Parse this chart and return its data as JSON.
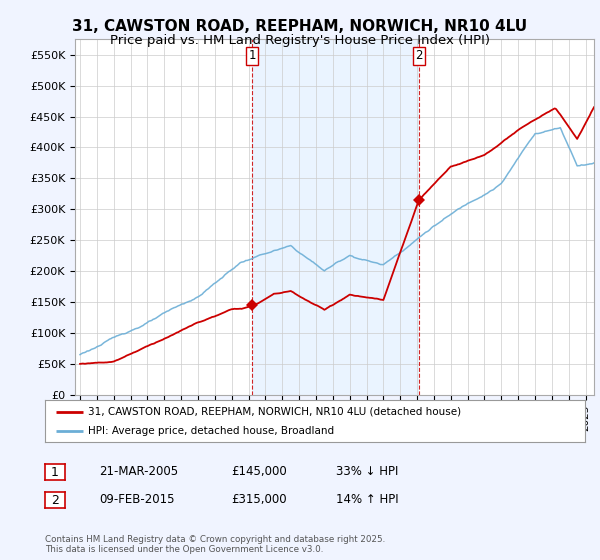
{
  "title1": "31, CAWSTON ROAD, REEPHAM, NORWICH, NR10 4LU",
  "title2": "Price paid vs. HM Land Registry's House Price Index (HPI)",
  "ylabel_ticks": [
    "£0",
    "£50K",
    "£100K",
    "£150K",
    "£200K",
    "£250K",
    "£300K",
    "£350K",
    "£400K",
    "£450K",
    "£500K",
    "£550K"
  ],
  "ytick_values": [
    0,
    50000,
    100000,
    150000,
    200000,
    250000,
    300000,
    350000,
    400000,
    450000,
    500000,
    550000
  ],
  "ylim": [
    0,
    575000
  ],
  "xlim_start": 1994.7,
  "xlim_end": 2025.5,
  "hpi_color": "#6baed6",
  "price_color": "#cc0000",
  "shade_color": "#ddeeff",
  "legend1": "31, CAWSTON ROAD, REEPHAM, NORWICH, NR10 4LU (detached house)",
  "legend2": "HPI: Average price, detached house, Broadland",
  "marker1_year": 2005.2,
  "marker1_price": 145000,
  "marker1_label": "1",
  "marker1_date": "21-MAR-2005",
  "marker1_amount": "£145,000",
  "marker1_pct": "33% ↓ HPI",
  "marker2_year": 2015.1,
  "marker2_price": 315000,
  "marker2_label": "2",
  "marker2_date": "09-FEB-2015",
  "marker2_amount": "£315,000",
  "marker2_pct": "14% ↑ HPI",
  "footer": "Contains HM Land Registry data © Crown copyright and database right 2025.\nThis data is licensed under the Open Government Licence v3.0.",
  "background_color": "#f0f4ff",
  "plot_bg_color": "#ffffff",
  "title_fontsize": 11,
  "subtitle_fontsize": 9.5
}
